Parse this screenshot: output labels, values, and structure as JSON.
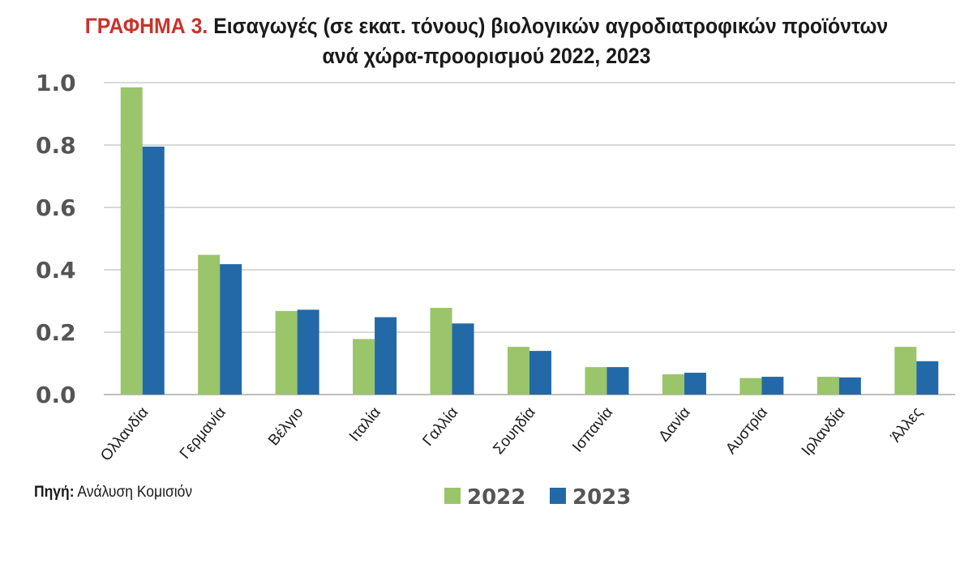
{
  "title": {
    "prefix": "ΓΡΑΦΗΜΑ 3.",
    "line1": "Εισαγωγές (σε εκατ. τόνους) βιολογικών αγροδιατροφικών προϊόντων",
    "line2": "ανά χώρα-προορισμού 2022, 2023"
  },
  "source": {
    "label": "Πηγή:",
    "text": "Ανάλυση Κομισιόν"
  },
  "colors": {
    "series_2022": "#9bc56a",
    "series_2023": "#2369a8",
    "grid": "#d9d9d9",
    "axis": "#bfbfbf"
  },
  "chart_data": {
    "type": "bar",
    "categories": [
      "Ολλανδία",
      "Γερμανία",
      "Βέλγιο",
      "Ιταλία",
      "Γαλλία",
      "Σουηδία",
      "Ισπανία",
      "Δανία",
      "Αυστρία",
      "Ιρλανδία",
      "Άλλες"
    ],
    "series": [
      {
        "name": "2022",
        "values": [
          0.985,
          0.448,
          0.268,
          0.178,
          0.278,
          0.153,
          0.088,
          0.065,
          0.053,
          0.057,
          0.153
        ]
      },
      {
        "name": "2023",
        "values": [
          0.795,
          0.418,
          0.272,
          0.248,
          0.228,
          0.14,
          0.088,
          0.07,
          0.057,
          0.055,
          0.107
        ]
      }
    ],
    "ylim": [
      0,
      1.0
    ],
    "yticks": [
      "0.0",
      "0.2",
      "0.4",
      "0.6",
      "0.8",
      "1.0"
    ],
    "ytick_values": [
      0,
      0.2,
      0.4,
      0.6,
      0.8,
      1.0
    ],
    "grid": true,
    "legend_position": "bottom-center"
  }
}
